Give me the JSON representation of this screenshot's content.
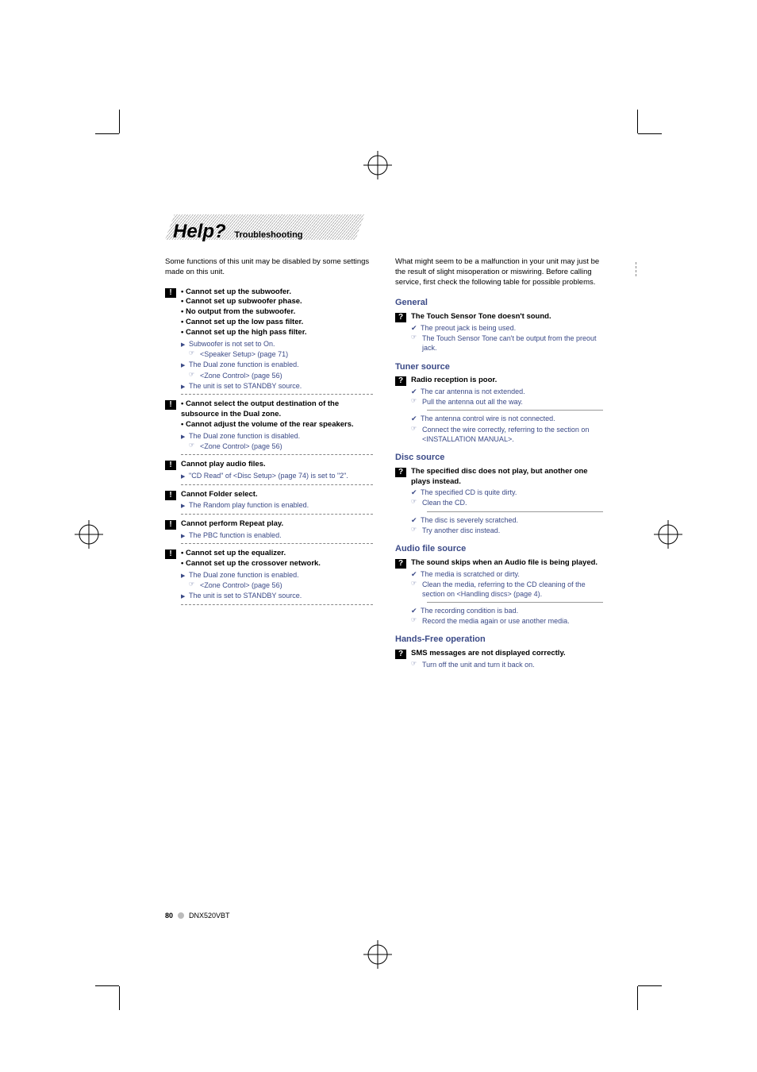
{
  "title": "Help?",
  "subtitle": "Troubleshooting",
  "colors": {
    "body_text": "#3b4a87",
    "heading_text": "#000000",
    "stripe_gray": "#b0b0b0",
    "background": "#ffffff"
  },
  "leftCol": {
    "intro": "Some functions of this unit may be disabled by some settings made on this unit.",
    "blocks": [
      {
        "badge": "!",
        "titles": [
          "• Cannot set up the subwoofer.",
          "• Cannot set up subwoofer phase.",
          "• No output from the subwoofer.",
          "• Cannot set up the low pass filter.",
          "• Cannot set up the high pass filter."
        ],
        "lines": [
          {
            "type": "tri",
            "text": "Subwoofer is not set to On."
          },
          {
            "type": "ptr",
            "text": "<Speaker Setup> (page 71)"
          },
          {
            "type": "tri",
            "text": "The Dual zone function is enabled."
          },
          {
            "type": "ptr",
            "text": "<Zone Control> (page 56)"
          },
          {
            "type": "tri",
            "text": "The unit is set to STANDBY source."
          }
        ]
      },
      {
        "badge": "!",
        "titles": [
          "• Cannot select the output destination of the subsource in the Dual zone.",
          "• Cannot adjust the volume of the rear speakers."
        ],
        "lines": [
          {
            "type": "tri",
            "text": "The Dual zone function is disabled."
          },
          {
            "type": "ptr",
            "text": "<Zone Control> (page 56)"
          }
        ]
      },
      {
        "badge": "!",
        "titles": [
          "Cannot play audio files."
        ],
        "lines": [
          {
            "type": "tri",
            "text": "\"CD Read\" of <Disc Setup> (page 74) is set to \"2\"."
          }
        ]
      },
      {
        "badge": "!",
        "titles": [
          "Cannot Folder select."
        ],
        "lines": [
          {
            "type": "tri",
            "text": "The Random play function is enabled."
          }
        ]
      },
      {
        "badge": "!",
        "titles": [
          "Cannot perform Repeat play."
        ],
        "lines": [
          {
            "type": "tri",
            "text": "The PBC function is enabled."
          }
        ]
      },
      {
        "badge": "!",
        "titles": [
          "• Cannot set up the equalizer.",
          "• Cannot set up the crossover network."
        ],
        "lines": [
          {
            "type": "tri",
            "text": "The Dual zone function is enabled."
          },
          {
            "type": "ptr",
            "text": "<Zone Control> (page 56)"
          },
          {
            "type": "tri",
            "text": "The unit is set to STANDBY source."
          }
        ]
      }
    ]
  },
  "rightCol": {
    "intro": "What might seem to be a malfunction in your unit may just be the result of slight misoperation or miswiring. Before calling service, first check the following table for possible problems.",
    "sections": [
      {
        "head": "General",
        "items": [
          {
            "title": "The Touch Sensor Tone doesn't sound.",
            "groups": [
              [
                {
                  "type": "chk",
                  "text": "The preout jack is being used."
                },
                {
                  "type": "ptr",
                  "text": "The Touch Sensor Tone can't be output from the preout jack."
                }
              ]
            ]
          }
        ]
      },
      {
        "head": "Tuner source",
        "items": [
          {
            "title": "Radio reception is poor.",
            "groups": [
              [
                {
                  "type": "chk",
                  "text": "The car antenna is not extended."
                },
                {
                  "type": "ptr",
                  "text": "Pull the antenna out all the way."
                }
              ],
              [
                {
                  "type": "chk",
                  "text": "The antenna control wire is not connected."
                },
                {
                  "type": "ptr",
                  "text": "Connect the wire correctly, referring to the section on <INSTALLATION MANUAL>."
                }
              ]
            ]
          }
        ]
      },
      {
        "head": "Disc source",
        "items": [
          {
            "title": "The specified disc does not play, but another one plays instead.",
            "groups": [
              [
                {
                  "type": "chk",
                  "text": "The specified CD is quite dirty."
                },
                {
                  "type": "ptr",
                  "text": "Clean the CD."
                }
              ],
              [
                {
                  "type": "chk",
                  "text": "The disc is severely scratched."
                },
                {
                  "type": "ptr",
                  "text": "Try another disc instead."
                }
              ]
            ]
          }
        ]
      },
      {
        "head": "Audio file source",
        "items": [
          {
            "title": "The sound skips when an Audio file is being played.",
            "groups": [
              [
                {
                  "type": "chk",
                  "text": "The media is scratched or dirty."
                },
                {
                  "type": "ptr",
                  "text": "Clean the media, referring to the CD cleaning of the section on <Handling discs> (page 4)."
                }
              ],
              [
                {
                  "type": "chk",
                  "text": "The recording condition is bad."
                },
                {
                  "type": "ptr",
                  "text": "Record the media again or use another media."
                }
              ]
            ]
          }
        ]
      },
      {
        "head": "Hands-Free operation",
        "items": [
          {
            "title": "SMS messages are not displayed correctly.",
            "groups": [
              [
                {
                  "type": "ptr",
                  "text": "Turn off the unit and turn it back on."
                }
              ]
            ]
          }
        ]
      }
    ]
  },
  "footer": {
    "page": "80",
    "model": "DNX520VBT"
  }
}
